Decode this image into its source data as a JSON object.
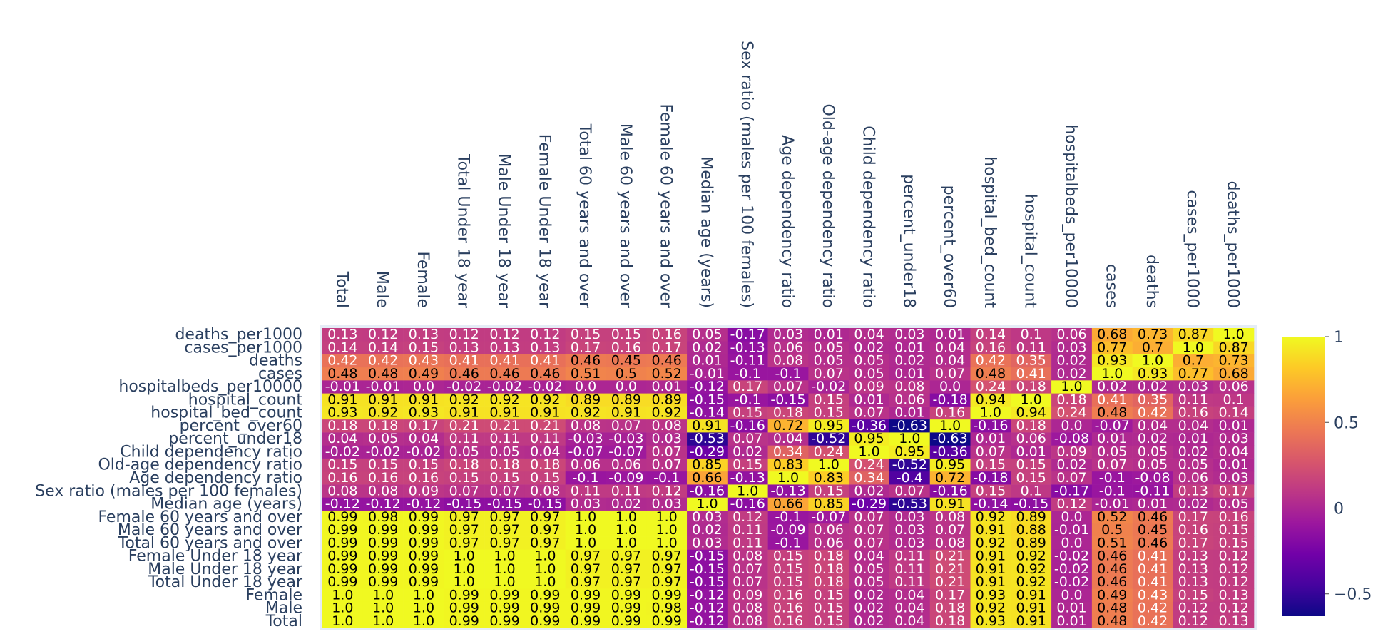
{
  "chart_data": {
    "type": "heatmap",
    "x": [
      "Total",
      "Male",
      "Female",
      "Total Under 18 year",
      "Male Under 18 year",
      "Female Under 18 year",
      "Total 60 years and over",
      "Male 60 years and over",
      "Female 60 years and over",
      "Median age (years)",
      "Sex ratio (males per 100 females)",
      "Age dependency ratio",
      "Old-age dependency ratio",
      "Child dependency ratio",
      "percent_under18",
      "percent_over60",
      "hospital_bed_count",
      "hospital_count",
      "hospitalbeds_per10000",
      "cases",
      "deaths",
      "cases_per1000",
      "deaths_per1000"
    ],
    "y": [
      "Total",
      "Male",
      "Female",
      "Total Under 18 year",
      "Male Under 18 year",
      "Female Under 18 year",
      "Total 60 years and over",
      "Male 60 years and over",
      "Female 60 years and over",
      "Median age (years)",
      "Sex ratio (males per 100 females)",
      "Age dependency ratio",
      "Old-age dependency ratio",
      "Child dependency ratio",
      "percent_under18",
      "percent_over60",
      "hospital_bed_count",
      "hospital_count",
      "hospitalbeds_per10000",
      "cases",
      "deaths",
      "cases_per1000",
      "deaths_per1000"
    ],
    "z": [
      [
        1.0,
        1.0,
        1.0,
        0.99,
        0.99,
        0.99,
        0.99,
        0.99,
        0.99,
        -0.12,
        0.08,
        0.16,
        0.15,
        0.02,
        0.04,
        0.18,
        0.93,
        0.91,
        0.01,
        0.48,
        0.42,
        0.12,
        0.13
      ],
      [
        1.0,
        1.0,
        1.0,
        0.99,
        0.99,
        0.99,
        0.99,
        0.99,
        0.98,
        -0.12,
        0.08,
        0.16,
        0.15,
        0.02,
        0.04,
        0.18,
        0.92,
        0.91,
        0.01,
        0.48,
        0.42,
        0.12,
        0.12
      ],
      [
        1.0,
        1.0,
        1.0,
        0.99,
        0.99,
        0.99,
        0.99,
        0.99,
        0.99,
        -0.12,
        0.09,
        0.16,
        0.15,
        0.02,
        0.04,
        0.17,
        0.93,
        0.91,
        -0.0,
        0.49,
        0.43,
        0.15,
        0.13
      ],
      [
        0.99,
        0.99,
        0.99,
        1.0,
        1.0,
        1.0,
        0.97,
        0.97,
        0.97,
        -0.15,
        0.07,
        0.15,
        0.18,
        0.05,
        0.11,
        0.21,
        0.91,
        0.92,
        -0.02,
        0.46,
        0.41,
        0.13,
        0.12
      ],
      [
        0.99,
        0.99,
        0.99,
        1.0,
        1.0,
        1.0,
        0.97,
        0.97,
        0.97,
        -0.15,
        0.07,
        0.15,
        0.18,
        0.05,
        0.11,
        0.21,
        0.91,
        0.92,
        -0.02,
        0.46,
        0.41,
        0.13,
        0.12
      ],
      [
        0.99,
        0.99,
        0.99,
        1.0,
        1.0,
        1.0,
        0.97,
        0.97,
        0.97,
        -0.15,
        0.08,
        0.15,
        0.18,
        0.04,
        0.11,
        0.21,
        0.91,
        0.92,
        -0.02,
        0.46,
        0.41,
        0.13,
        0.12
      ],
      [
        0.99,
        0.99,
        0.99,
        0.97,
        0.97,
        0.97,
        1.0,
        1.0,
        1.0,
        0.03,
        0.11,
        -0.1,
        0.06,
        0.07,
        0.03,
        0.08,
        0.92,
        0.89,
        -0.0,
        0.51,
        0.46,
        0.17,
        0.15
      ],
      [
        0.99,
        0.99,
        0.99,
        0.97,
        0.97,
        0.97,
        1.0,
        1.0,
        1.0,
        0.02,
        0.11,
        -0.09,
        0.06,
        0.07,
        0.03,
        0.07,
        0.91,
        0.88,
        -0.01,
        0.5,
        0.45,
        0.16,
        0.15
      ],
      [
        0.99,
        0.98,
        0.99,
        0.97,
        0.97,
        0.97,
        1.0,
        1.0,
        1.0,
        0.03,
        0.12,
        -0.1,
        -0.07,
        0.07,
        0.03,
        0.08,
        0.92,
        0.89,
        0.0,
        0.52,
        0.46,
        0.17,
        0.16
      ],
      [
        -0.12,
        -0.12,
        -0.12,
        -0.15,
        -0.15,
        -0.15,
        0.03,
        0.02,
        0.03,
        1.0,
        -0.16,
        0.66,
        0.85,
        -0.29,
        -0.53,
        0.91,
        -0.14,
        -0.15,
        0.12,
        -0.01,
        0.01,
        0.02,
        0.05
      ],
      [
        0.08,
        0.08,
        0.09,
        0.07,
        0.07,
        0.08,
        0.11,
        0.11,
        0.12,
        -0.16,
        1.0,
        -0.13,
        0.15,
        0.02,
        0.07,
        -0.16,
        0.15,
        0.1,
        -0.17,
        -0.1,
        -0.11,
        0.13,
        0.17
      ],
      [
        0.16,
        0.16,
        0.16,
        0.15,
        0.15,
        0.15,
        -0.1,
        -0.09,
        -0.1,
        0.66,
        -0.13,
        1.0,
        0.83,
        0.34,
        -0.4,
        0.72,
        -0.18,
        0.15,
        0.07,
        -0.1,
        -0.08,
        0.06,
        0.03
      ],
      [
        0.15,
        0.15,
        0.15,
        0.18,
        0.18,
        0.18,
        0.06,
        0.06,
        0.07,
        0.85,
        0.15,
        0.83,
        1.0,
        0.24,
        -0.52,
        0.95,
        0.15,
        0.15,
        0.02,
        0.07,
        0.05,
        0.05,
        0.01
      ],
      [
        -0.02,
        -0.02,
        -0.02,
        0.05,
        0.05,
        0.04,
        -0.07,
        -0.07,
        0.07,
        -0.29,
        0.02,
        0.34,
        0.24,
        1.0,
        0.95,
        -0.36,
        0.07,
        0.01,
        0.09,
        0.05,
        0.05,
        0.02,
        0.04
      ],
      [
        0.04,
        0.05,
        0.04,
        0.11,
        0.11,
        0.11,
        -0.03,
        -0.03,
        0.03,
        -0.53,
        0.07,
        0.04,
        -0.52,
        0.95,
        1.0,
        -0.63,
        0.01,
        0.06,
        -0.08,
        0.01,
        0.02,
        0.01,
        0.03
      ],
      [
        0.18,
        0.18,
        0.17,
        0.21,
        0.21,
        0.21,
        0.08,
        0.07,
        0.08,
        0.91,
        -0.16,
        0.72,
        0.95,
        -0.36,
        -0.63,
        1.0,
        -0.16,
        0.18,
        -0.0,
        -0.07,
        0.04,
        0.04,
        0.01
      ],
      [
        0.93,
        0.92,
        0.93,
        0.91,
        0.91,
        0.91,
        0.92,
        0.91,
        0.92,
        -0.14,
        0.15,
        0.18,
        0.15,
        0.07,
        0.01,
        0.16,
        1.0,
        0.94,
        0.24,
        0.48,
        0.42,
        0.16,
        0.14
      ],
      [
        0.91,
        0.91,
        0.91,
        0.92,
        0.92,
        0.92,
        0.89,
        0.89,
        0.89,
        -0.15,
        -0.1,
        -0.15,
        0.15,
        0.01,
        0.06,
        -0.18,
        0.94,
        1.0,
        0.18,
        0.41,
        0.35,
        0.11,
        0.1
      ],
      [
        -0.01,
        -0.01,
        -0.0,
        -0.02,
        -0.02,
        -0.02,
        -0.0,
        -0.0,
        0.01,
        -0.12,
        0.17,
        0.07,
        -0.02,
        0.09,
        0.08,
        -0.0,
        0.24,
        0.18,
        1.0,
        0.02,
        0.02,
        0.03,
        0.06
      ],
      [
        0.48,
        0.48,
        0.49,
        0.46,
        0.46,
        0.46,
        0.51,
        0.5,
        0.52,
        -0.01,
        -0.1,
        -0.1,
        0.07,
        0.05,
        0.01,
        0.07,
        0.48,
        0.41,
        0.02,
        1.0,
        0.93,
        0.77,
        0.68
      ],
      [
        0.42,
        0.42,
        0.43,
        0.41,
        0.41,
        0.41,
        0.46,
        0.45,
        0.46,
        0.01,
        -0.11,
        0.08,
        0.05,
        0.05,
        0.02,
        0.04,
        0.42,
        0.35,
        0.02,
        0.93,
        1.0,
        0.7,
        0.73
      ],
      [
        0.14,
        0.14,
        0.15,
        0.13,
        0.13,
        0.13,
        0.17,
        0.16,
        0.17,
        0.02,
        -0.13,
        0.06,
        0.05,
        0.02,
        0.01,
        0.04,
        0.16,
        0.11,
        0.03,
        0.77,
        0.7,
        1.0,
        0.87
      ],
      [
        0.13,
        0.12,
        0.13,
        0.12,
        0.12,
        0.12,
        0.15,
        0.15,
        0.16,
        0.05,
        -0.17,
        0.03,
        0.01,
        0.04,
        0.03,
        0.01,
        0.14,
        0.1,
        0.06,
        0.68,
        0.73,
        0.87,
        1.0
      ]
    ],
    "zrange": [
      -0.63,
      1.0
    ],
    "colorbar_ticks": [
      1,
      0.5,
      0,
      -0.5
    ],
    "colorscale": [
      "#0d0887",
      "#46039f",
      "#7201a8",
      "#9c179e",
      "#bd3786",
      "#d8576b",
      "#ed7953",
      "#fb9f3a",
      "#fdca26",
      "#f0f921"
    ],
    "grid": false,
    "legend": "colorbar-right"
  }
}
